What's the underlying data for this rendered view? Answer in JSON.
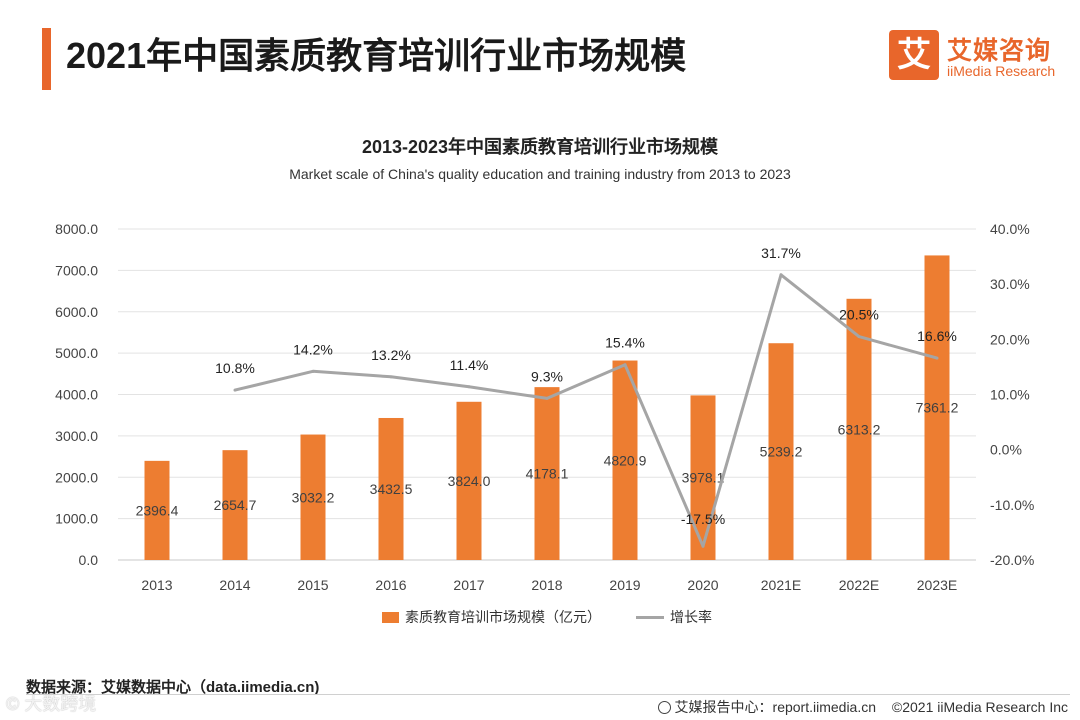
{
  "header": {
    "title": "2021年中国素质教育培训行业市场规模",
    "logo_mark": "艾",
    "logo_cn": "艾媒咨询",
    "logo_en": "iiMedia Research"
  },
  "colors": {
    "accent": "#e8662b",
    "bar": "#ed7d31",
    "line": "#a5a5a5"
  },
  "chart_data": {
    "type": "bar",
    "title": "2013-2023年中国素质教育培训行业市场规模",
    "subtitle": "Market scale of China's quality education and training industry from 2013 to 2023",
    "categories": [
      "2013",
      "2014",
      "2015",
      "2016",
      "2017",
      "2018",
      "2019",
      "2020",
      "2021E",
      "2022E",
      "2023E"
    ],
    "series": [
      {
        "name": "素质教育培训市场规模（亿元）",
        "type": "bar",
        "axis": "left",
        "values": [
          2396.4,
          2654.7,
          3032.2,
          3432.5,
          3824.0,
          4178.1,
          4820.9,
          3978.1,
          5239.2,
          6313.2,
          7361.2
        ],
        "labels": [
          "2396.4",
          "2654.7",
          "3032.2",
          "3432.5",
          "3824.0",
          "4178.1",
          "4820.9",
          "3978.1",
          "5239.2",
          "6313.2",
          "7361.2"
        ]
      },
      {
        "name": "增长率",
        "type": "line",
        "axis": "right",
        "values": [
          null,
          10.8,
          14.2,
          13.2,
          11.4,
          9.3,
          15.4,
          -17.5,
          31.7,
          20.5,
          16.6
        ],
        "labels": [
          "",
          "10.8%",
          "14.2%",
          "13.2%",
          "11.4%",
          "9.3%",
          "15.4%",
          "-17.5%",
          "31.7%",
          "20.5%",
          "16.6%"
        ]
      }
    ],
    "y_left": {
      "min": 0,
      "max": 8000,
      "step": 1000,
      "ticks": [
        "0.0",
        "1000.0",
        "2000.0",
        "3000.0",
        "4000.0",
        "5000.0",
        "6000.0",
        "7000.0",
        "8000.0"
      ]
    },
    "y_right": {
      "min": -20,
      "max": 40,
      "step": 10,
      "ticks": [
        "-20.0%",
        "-10.0%",
        "0.0%",
        "10.0%",
        "20.0%",
        "30.0%",
        "40.0%"
      ]
    },
    "grid": true,
    "legend_position": "bottom"
  },
  "footer": {
    "source": "数据来源：艾媒数据中心（data.iimedia.cn)",
    "report_center": "艾媒报告中心：report.iimedia.cn",
    "copyright": "©2021  iiMedia Research  Inc",
    "watermark": "©  大数跨境"
  }
}
